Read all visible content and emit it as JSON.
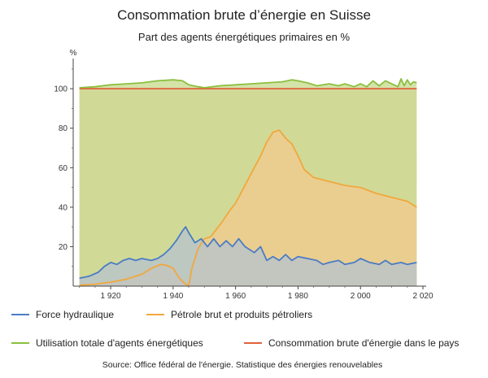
{
  "chart_data": {
    "type": "area",
    "title": "Consommation brute d’énergie en Suisse",
    "subtitle": "Part des agents énergétiques primaires en %",
    "ylabel": "%",
    "xlabel": "",
    "xlim": [
      1908,
      2020
    ],
    "ylim": [
      0,
      112
    ],
    "x_ticks": [
      {
        "value": 1920,
        "label": "1 920"
      },
      {
        "value": 1940,
        "label": "1 940"
      },
      {
        "value": 1960,
        "label": "1 960"
      },
      {
        "value": 1980,
        "label": "1 980"
      },
      {
        "value": 2000,
        "label": "2 000"
      },
      {
        "value": 2020,
        "label": "2 020"
      }
    ],
    "y_ticks": [
      {
        "value": 20,
        "label": "20"
      },
      {
        "value": 40,
        "label": "40"
      },
      {
        "value": 60,
        "label": "60"
      },
      {
        "value": 80,
        "label": "80"
      },
      {
        "value": 100,
        "label": "100"
      }
    ],
    "series": [
      {
        "name": "Consommation brute d'énergie dans le pays",
        "color": "#e0613a",
        "fill": "#f0c9a0",
        "x": [
          1910,
          2018
        ],
        "values": [
          100,
          100
        ]
      },
      {
        "name": "Utilisation totale d'agents énergétiques",
        "color": "#8cbf3f",
        "fill": "#c6d98b",
        "x": [
          1910,
          1915,
          1920,
          1925,
          1930,
          1935,
          1940,
          1943,
          1945,
          1948,
          1950,
          1955,
          1960,
          1965,
          1970,
          1975,
          1978,
          1980,
          1983,
          1986,
          1990,
          1993,
          1995,
          1998,
          2000,
          2002,
          2004,
          2006,
          2008,
          2010,
          2012,
          2013,
          2014,
          2015,
          2016,
          2017,
          2018
        ],
        "values": [
          100.5,
          101,
          102,
          102.5,
          103,
          104,
          104.5,
          104,
          102,
          101,
          100.5,
          101.5,
          102,
          102.5,
          103,
          103.5,
          104.5,
          104,
          103,
          101.5,
          102.5,
          101.5,
          102.5,
          101,
          102.5,
          101,
          104,
          101.5,
          104,
          102.5,
          101,
          105,
          101.5,
          104.5,
          102,
          103.5,
          103
        ]
      },
      {
        "name": "Pétrole brut et produits pétroliers",
        "color": "#f0a83d",
        "fill": "#f2c98e",
        "x": [
          1910,
          1915,
          1920,
          1925,
          1930,
          1933,
          1936,
          1938,
          1940,
          1942,
          1944,
          1945,
          1946,
          1948,
          1950,
          1952,
          1955,
          1958,
          1960,
          1962,
          1965,
          1968,
          1970,
          1972,
          1974,
          1976,
          1978,
          1980,
          1982,
          1985,
          1990,
          1995,
          2000,
          2005,
          2010,
          2015,
          2018
        ],
        "values": [
          0.5,
          1,
          2,
          3.5,
          6,
          9,
          11,
          10.5,
          9,
          4,
          1,
          0.5,
          9,
          19,
          24,
          25,
          31,
          38,
          42,
          48,
          57,
          66,
          73,
          78,
          79,
          75,
          72,
          66,
          59,
          55,
          53,
          51,
          50,
          47,
          45,
          43,
          40
        ]
      },
      {
        "name": "Force hydraulique",
        "color": "#4a7cc4",
        "fill": "#b6c2cf",
        "x": [
          1910,
          1913,
          1916,
          1918,
          1920,
          1922,
          1924,
          1926,
          1928,
          1930,
          1933,
          1935,
          1937,
          1939,
          1941,
          1943,
          1944,
          1945,
          1947,
          1949,
          1951,
          1953,
          1955,
          1957,
          1959,
          1961,
          1963,
          1966,
          1968,
          1970,
          1972,
          1974,
          1976,
          1978,
          1980,
          1983,
          1986,
          1988,
          1990,
          1993,
          1995,
          1998,
          2000,
          2003,
          2006,
          2008,
          2010,
          2013,
          2015,
          2018
        ],
        "values": [
          4,
          5,
          7,
          10,
          12,
          11,
          13,
          14,
          13,
          14,
          13,
          14,
          16,
          19,
          23,
          28,
          30,
          27,
          22,
          24,
          20,
          24,
          20,
          23,
          20,
          24,
          20,
          17,
          20,
          13,
          15,
          13,
          16,
          13,
          15,
          14,
          13,
          11,
          12,
          13,
          11,
          12,
          14,
          12,
          11,
          13,
          11,
          12,
          11,
          12
        ]
      }
    ],
    "legend": [
      {
        "label": "Force hydraulique",
        "color": "#4a7cc4"
      },
      {
        "label": "Pétrole brut et produits pétroliers",
        "color": "#f0a83d"
      },
      {
        "label": "Utilisation totale d'agents énergétiques",
        "color": "#8cbf3f"
      },
      {
        "label": "Consommation brute d'énergie dans le pays",
        "color": "#e0613a"
      }
    ],
    "source": "Source: Office fédéral de l'énergie. Statistique des énergies renouvelables",
    "grid": false
  }
}
